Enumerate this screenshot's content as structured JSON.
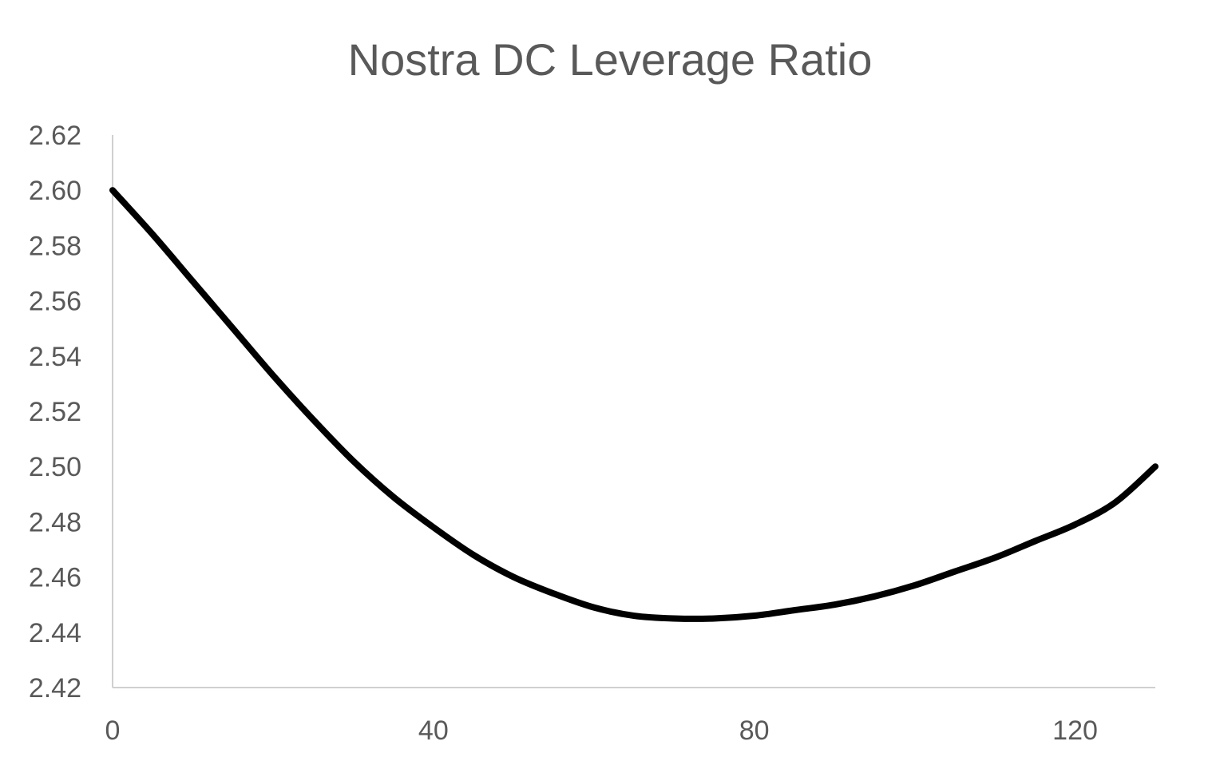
{
  "chart_data": {
    "type": "line",
    "title": "Nostra DC Leverage Ratio",
    "xlabel": "",
    "ylabel": "",
    "xlim": [
      0,
      130
    ],
    "ylim": [
      2.42,
      2.62
    ],
    "x_ticks": [
      0,
      40,
      80,
      120
    ],
    "x_tick_labels": [
      "0",
      "40",
      "80",
      "120"
    ],
    "y_ticks": [
      2.42,
      2.44,
      2.46,
      2.48,
      2.5,
      2.52,
      2.54,
      2.56,
      2.58,
      2.6,
      2.62
    ],
    "y_tick_labels": [
      "2.42",
      "2.44",
      "2.46",
      "2.48",
      "2.50",
      "2.52",
      "2.54",
      "2.56",
      "2.58",
      "2.60",
      "2.62"
    ],
    "grid": false,
    "legend": "none",
    "series": [
      {
        "color": "#000000",
        "x": [
          0,
          5,
          10,
          15,
          20,
          25,
          30,
          35,
          40,
          45,
          50,
          55,
          60,
          65,
          70,
          75,
          80,
          85,
          90,
          95,
          100,
          105,
          110,
          115,
          120,
          125,
          130
        ],
        "y": [
          2.6,
          2.584,
          2.567,
          2.55,
          2.533,
          2.517,
          2.502,
          2.489,
          2.478,
          2.468,
          2.46,
          2.454,
          2.449,
          2.446,
          2.445,
          2.445,
          2.446,
          2.448,
          2.45,
          2.453,
          2.457,
          2.462,
          2.467,
          2.473,
          2.479,
          2.487,
          2.5
        ]
      }
    ]
  }
}
